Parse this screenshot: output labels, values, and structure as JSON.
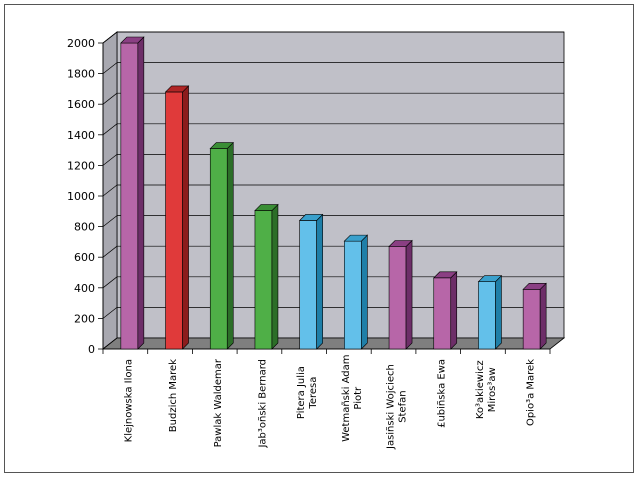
{
  "chart_data": {
    "type": "bar",
    "title": "",
    "xlabel": "",
    "ylabel": "",
    "ylim": [
      0,
      2000
    ],
    "ytick_step": 200,
    "grid": true,
    "legend": "none",
    "categories": [
      [
        "Klejnowska Ilona"
      ],
      [
        "Budzich Marek"
      ],
      [
        "Pawlak Waldemar"
      ],
      [
        "Jab³oñski Bernard"
      ],
      [
        "Pitera Julia",
        "Teresa"
      ],
      [
        "Wetmañski Adam",
        "Piotr"
      ],
      [
        "Jasiñski Wojciech",
        "Stefan"
      ],
      [
        "£ubiñska Ewa"
      ],
      [
        "Ko³akiewicz",
        "Miros³aw"
      ],
      [
        "Opio³a Marek"
      ]
    ],
    "values": [
      2000,
      1680,
      1310,
      905,
      840,
      705,
      670,
      465,
      440,
      390
    ],
    "colors": [
      "#b766a8",
      "#e03a3a",
      "#4faf47",
      "#4faf47",
      "#63c0ea",
      "#63c0ea",
      "#b766a8",
      "#b766a8",
      "#63c0ea",
      "#b766a8"
    ],
    "colors_side": [
      "#6d2e68",
      "#8c1c1c",
      "#2c6e28",
      "#2c6e28",
      "#1f7fa8",
      "#1f7fa8",
      "#6d2e68",
      "#6d2e68",
      "#1f7fa8",
      "#6d2e68"
    ],
    "colors_top": [
      "#8a3f83",
      "#b02626",
      "#3a8e35",
      "#3a8e35",
      "#3aa0cc",
      "#3aa0cc",
      "#8a3f83",
      "#8a3f83",
      "#3aa0cc",
      "#8a3f83"
    ],
    "wall_color": "#c0c0c8",
    "floor_color": "#7f7f7f"
  }
}
